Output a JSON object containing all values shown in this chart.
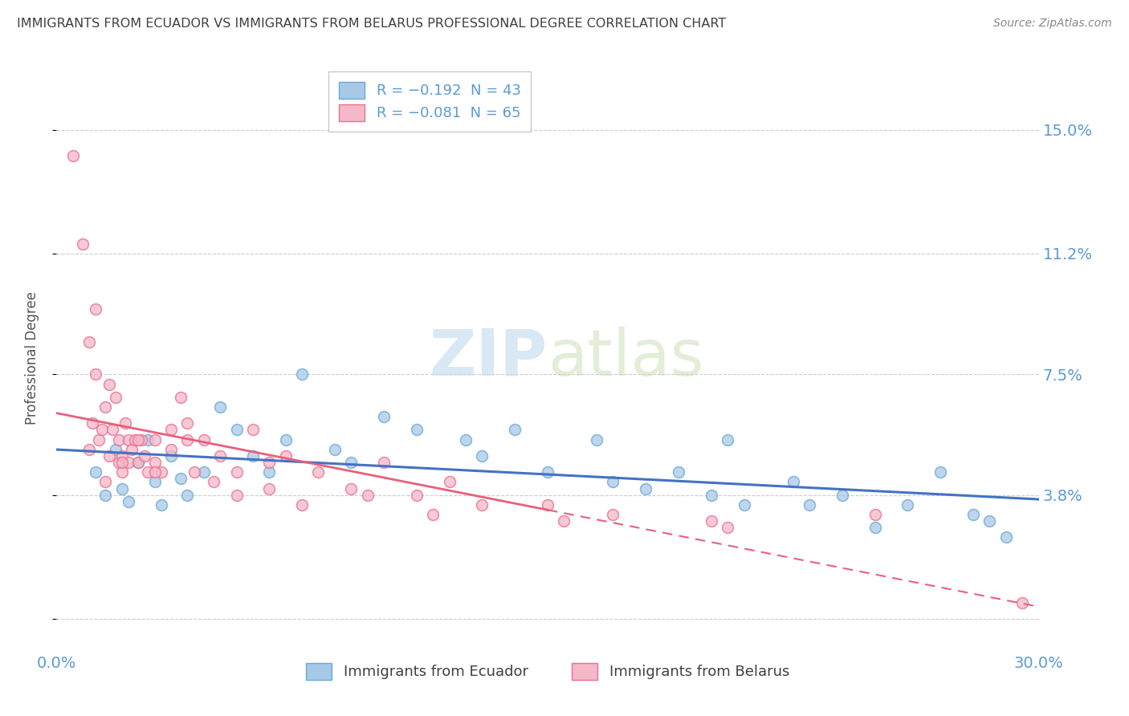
{
  "title": "IMMIGRANTS FROM ECUADOR VS IMMIGRANTS FROM BELARUS PROFESSIONAL DEGREE CORRELATION CHART",
  "source": "Source: ZipAtlas.com",
  "ylabel": "Professional Degree",
  "ytick_vals": [
    0.0,
    3.8,
    7.5,
    11.2,
    15.0
  ],
  "ytick_labels": [
    "",
    "3.8%",
    "7.5%",
    "11.2%",
    "15.0%"
  ],
  "xlim": [
    0.0,
    30.0
  ],
  "ylim": [
    -1.0,
    17.0
  ],
  "ecuador_color": "#a8c8e8",
  "ecuador_edge_color": "#6aaad4",
  "ecuador_line_color": "#4472c4",
  "belarus_color": "#f4b8c8",
  "belarus_edge_color": "#e87090",
  "belarus_line_color": "#e8607a",
  "title_color": "#404040",
  "axis_label_color": "#5b9bd5",
  "watermark_color": "#c8dff0",
  "background_color": "#ffffff",
  "grid_color": "#cccccc",
  "R_ecuador": -0.192,
  "N_ecuador": 43,
  "R_belarus": -0.081,
  "N_belarus": 65,
  "legend_top": [
    {
      "label": "R = -0.192  N = 43",
      "facecolor": "#a8c8e8",
      "edgecolor": "#6aaad4"
    },
    {
      "label": "R = -0.081  N = 65",
      "facecolor": "#f4b8c8",
      "edgecolor": "#e87090"
    }
  ],
  "legend_bottom": [
    {
      "label": "Immigrants from Ecuador",
      "facecolor": "#a8c8e8",
      "edgecolor": "#6aaad4"
    },
    {
      "label": "Immigrants from Belarus",
      "facecolor": "#f4b8c8",
      "edgecolor": "#e87090"
    }
  ],
  "ec_x": [
    1.2,
    1.5,
    1.8,
    2.0,
    2.2,
    2.5,
    2.8,
    3.0,
    3.2,
    3.5,
    3.8,
    4.0,
    4.5,
    5.0,
    5.5,
    6.0,
    6.5,
    7.0,
    7.5,
    8.5,
    9.0,
    10.0,
    11.0,
    12.5,
    13.0,
    14.0,
    15.0,
    16.5,
    17.0,
    18.0,
    19.0,
    20.0,
    21.0,
    22.5,
    23.0,
    24.0,
    25.0,
    26.0,
    27.0,
    28.0,
    28.5,
    29.0,
    20.5
  ],
  "ec_y": [
    4.5,
    3.8,
    5.2,
    4.0,
    3.6,
    4.8,
    5.5,
    4.2,
    3.5,
    5.0,
    4.3,
    3.8,
    4.5,
    6.5,
    5.8,
    5.0,
    4.5,
    5.5,
    7.5,
    5.2,
    4.8,
    6.2,
    5.8,
    5.5,
    5.0,
    5.8,
    4.5,
    5.5,
    4.2,
    4.0,
    4.5,
    3.8,
    3.5,
    4.2,
    3.5,
    3.8,
    2.8,
    3.5,
    4.5,
    3.2,
    3.0,
    2.5,
    5.5
  ],
  "bel_x": [
    0.5,
    0.8,
    1.0,
    1.0,
    1.1,
    1.2,
    1.3,
    1.4,
    1.5,
    1.5,
    1.6,
    1.7,
    1.8,
    1.9,
    1.9,
    2.0,
    2.0,
    2.1,
    2.2,
    2.2,
    2.3,
    2.4,
    2.5,
    2.6,
    2.7,
    2.8,
    3.0,
    3.0,
    3.2,
    3.5,
    3.8,
    4.0,
    4.2,
    4.5,
    5.0,
    5.5,
    6.0,
    6.5,
    7.0,
    8.0,
    9.0,
    10.0,
    11.0,
    12.0,
    13.0,
    15.0,
    17.0,
    20.0,
    25.0,
    29.5,
    1.2,
    1.6,
    2.0,
    2.5,
    3.0,
    3.5,
    4.0,
    4.8,
    5.5,
    6.5,
    7.5,
    9.5,
    11.5,
    15.5,
    20.5
  ],
  "bel_y": [
    14.2,
    11.5,
    5.2,
    8.5,
    6.0,
    7.5,
    5.5,
    5.8,
    6.5,
    4.2,
    5.0,
    5.8,
    6.8,
    4.8,
    5.5,
    5.0,
    4.5,
    6.0,
    5.5,
    4.8,
    5.2,
    5.5,
    4.8,
    5.5,
    5.0,
    4.5,
    5.5,
    4.8,
    4.5,
    5.2,
    6.8,
    5.5,
    4.5,
    5.5,
    5.0,
    4.5,
    5.8,
    4.8,
    5.0,
    4.5,
    4.0,
    4.8,
    3.8,
    4.2,
    3.5,
    3.5,
    3.2,
    3.0,
    3.2,
    0.5,
    9.5,
    7.2,
    4.8,
    5.5,
    4.5,
    5.8,
    6.0,
    4.2,
    3.8,
    4.0,
    3.5,
    3.8,
    3.2,
    3.0,
    2.8
  ]
}
